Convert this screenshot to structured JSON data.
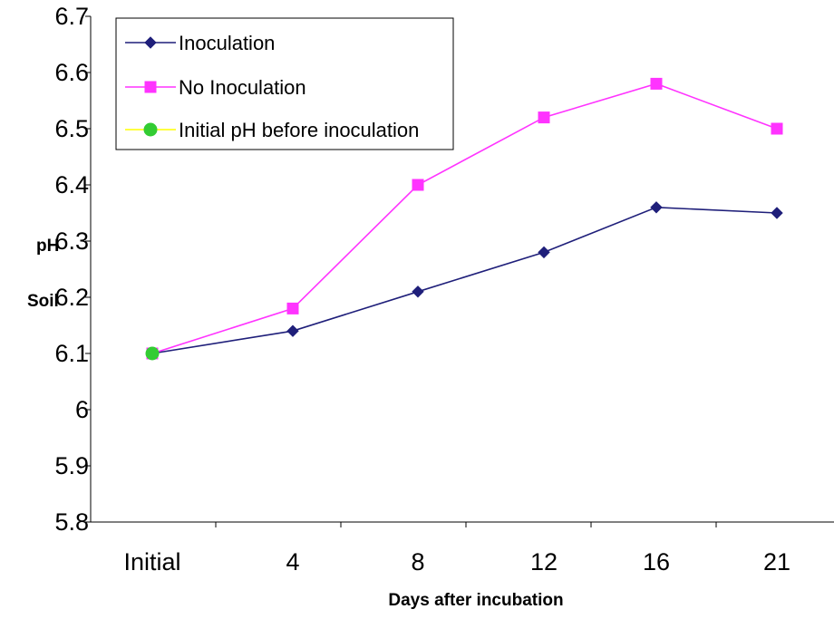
{
  "chart_data": {
    "type": "line",
    "title": "",
    "xlabel": "Days after incubation",
    "ylabel_parts": [
      "pH",
      "Soil"
    ],
    "categories": [
      "Initial",
      "4",
      "8",
      "12",
      "16",
      "21"
    ],
    "ylim": [
      5.8,
      6.7
    ],
    "yticks": [
      "5.8",
      "5.9",
      "6",
      "6.1",
      "6.2",
      "6.3",
      "6.4",
      "6.5",
      "6.6",
      "6.7"
    ],
    "ytick_values": [
      5.8,
      5.9,
      6.0,
      6.1,
      6.2,
      6.3,
      6.4,
      6.5,
      6.6,
      6.7
    ],
    "grid": false,
    "legend_position": "top-left",
    "series": [
      {
        "name": "Inoculation",
        "color": "#1f1f7a",
        "marker": "diamond",
        "values": [
          6.1,
          6.14,
          6.21,
          6.28,
          6.36,
          6.35
        ]
      },
      {
        "name": "No Inoculation",
        "color": "#ff33ff",
        "marker": "square",
        "values": [
          6.1,
          6.18,
          6.4,
          6.52,
          6.58,
          6.5
        ]
      },
      {
        "name": "Initial pH before inoculation",
        "color": "#33cc33",
        "line_color": "#ffff00",
        "marker": "circle",
        "values": [
          6.1,
          null,
          null,
          null,
          null,
          null
        ]
      }
    ]
  }
}
